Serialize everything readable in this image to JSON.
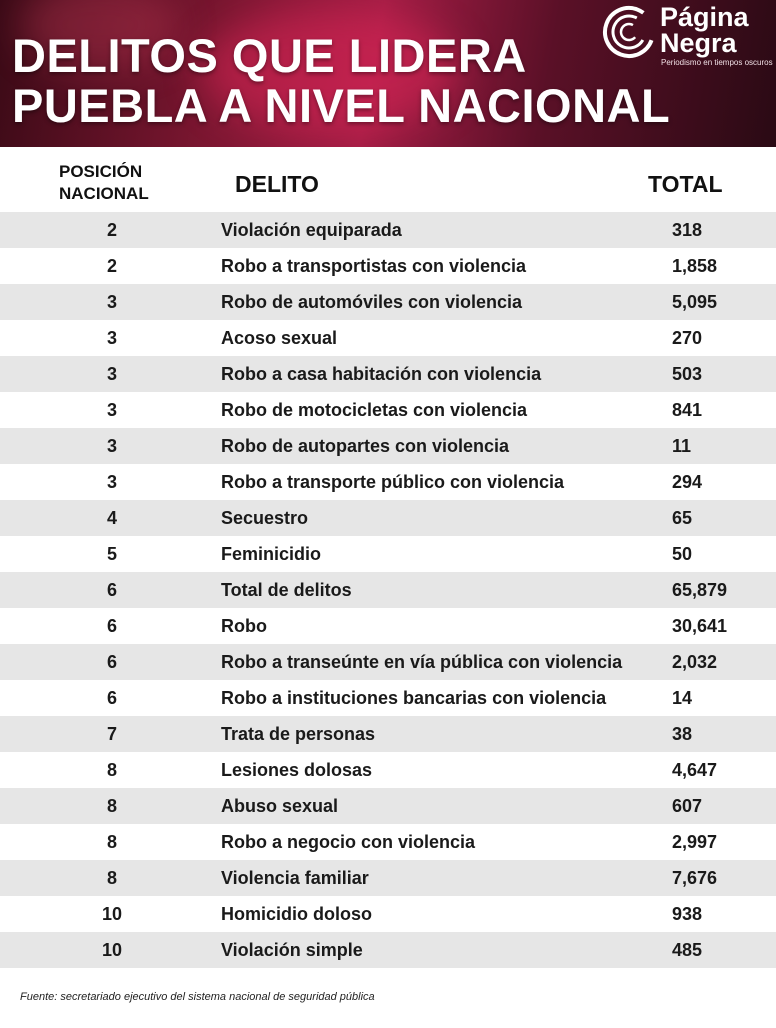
{
  "header": {
    "title_lines": [
      "DELITOS QUE LIDERA",
      "PUEBLA A NIVEL NACIONAL"
    ],
    "logo_lines": [
      "Página",
      "Negra"
    ],
    "tagline": "Periodismo en tiempos oscuros"
  },
  "table": {
    "columns": [
      [
        "POSICIÓN",
        "NACIONAL"
      ],
      "DELITO",
      "TOTAL"
    ],
    "rows": [
      [
        "2",
        "Violación equiparada",
        "318"
      ],
      [
        "2",
        "Robo a transportistas con violencia",
        "1,858"
      ],
      [
        "3",
        "Robo de automóviles con violencia",
        "5,095"
      ],
      [
        "3",
        "Acoso sexual",
        "270"
      ],
      [
        "3",
        "Robo a casa habitación con violencia",
        "503"
      ],
      [
        "3",
        "Robo de motocicletas con violencia",
        "841"
      ],
      [
        "3",
        "Robo de autopartes con violencia",
        "11"
      ],
      [
        "3",
        "Robo a transporte público con violencia",
        "294"
      ],
      [
        "4",
        "Secuestro",
        "65"
      ],
      [
        "5",
        "Feminicidio",
        "50"
      ],
      [
        "6",
        "Total de delitos",
        "65,879"
      ],
      [
        "6",
        "Robo",
        "30,641"
      ],
      [
        "6",
        "Robo a transeúnte en vía pública con violencia",
        "2,032"
      ],
      [
        "6",
        "Robo a instituciones bancarias con violencia",
        "14"
      ],
      [
        "7",
        "Trata de personas",
        "38"
      ],
      [
        "8",
        "Lesiones dolosas",
        "4,647"
      ],
      [
        "8",
        "Abuso sexual",
        "607"
      ],
      [
        "8",
        "Robo a negocio con violencia",
        "2,997"
      ],
      [
        "8",
        "Violencia familiar",
        "7,676"
      ],
      [
        "10",
        "Homicidio doloso",
        "938"
      ],
      [
        "10",
        "Violación simple",
        "485"
      ]
    ]
  },
  "footer": {
    "source": "Fuente: secretariado ejecutivo del sistema nacional de seguridad pública"
  }
}
